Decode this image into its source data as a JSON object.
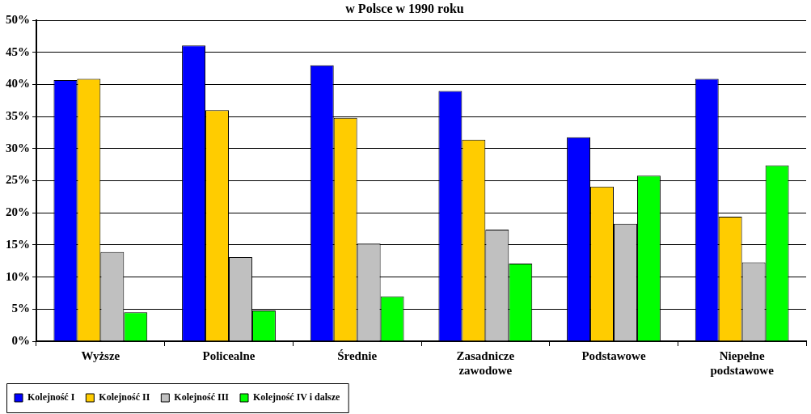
{
  "chart_data": {
    "type": "bar",
    "title": "w Polsce w 1990 roku",
    "categories": [
      "Wyższe",
      "Policealne",
      "Średnie",
      "Zasadnicze zawodowe",
      "Podstawowe",
      "Niepełne podstawowe"
    ],
    "series": [
      {
        "name": "Kolejność I",
        "color": "#0000ff",
        "values": [
          40.7,
          46.1,
          43.0,
          39.0,
          31.8,
          40.9
        ]
      },
      {
        "name": "Kolejność II",
        "color": "#ffcc00",
        "values": [
          40.9,
          36.0,
          34.8,
          31.4,
          24.1,
          19.4
        ]
      },
      {
        "name": "Kolejność III",
        "color": "#c0c0c0",
        "values": [
          13.9,
          13.1,
          15.2,
          17.4,
          18.3,
          12.3
        ]
      },
      {
        "name": "Kolejność IV i dalsze",
        "color": "#00ff00",
        "values": [
          4.5,
          4.8,
          7.0,
          12.1,
          25.8,
          27.4
        ]
      }
    ],
    "ylim": [
      0,
      50
    ],
    "yticks": [
      {
        "value": 0,
        "label": "0%"
      },
      {
        "value": 5,
        "label": "5%"
      },
      {
        "value": 10,
        "label": "10%"
      },
      {
        "value": 15,
        "label": "15%"
      },
      {
        "value": 20,
        "label": "20%"
      },
      {
        "value": 25,
        "label": "25%"
      },
      {
        "value": 30,
        "label": "30%"
      },
      {
        "value": 35,
        "label": "35%"
      },
      {
        "value": 40,
        "label": "40%"
      },
      {
        "value": 45,
        "label": "45%"
      },
      {
        "value": 50,
        "label": "50%"
      }
    ],
    "grid": "y",
    "legend": "bottom left"
  }
}
